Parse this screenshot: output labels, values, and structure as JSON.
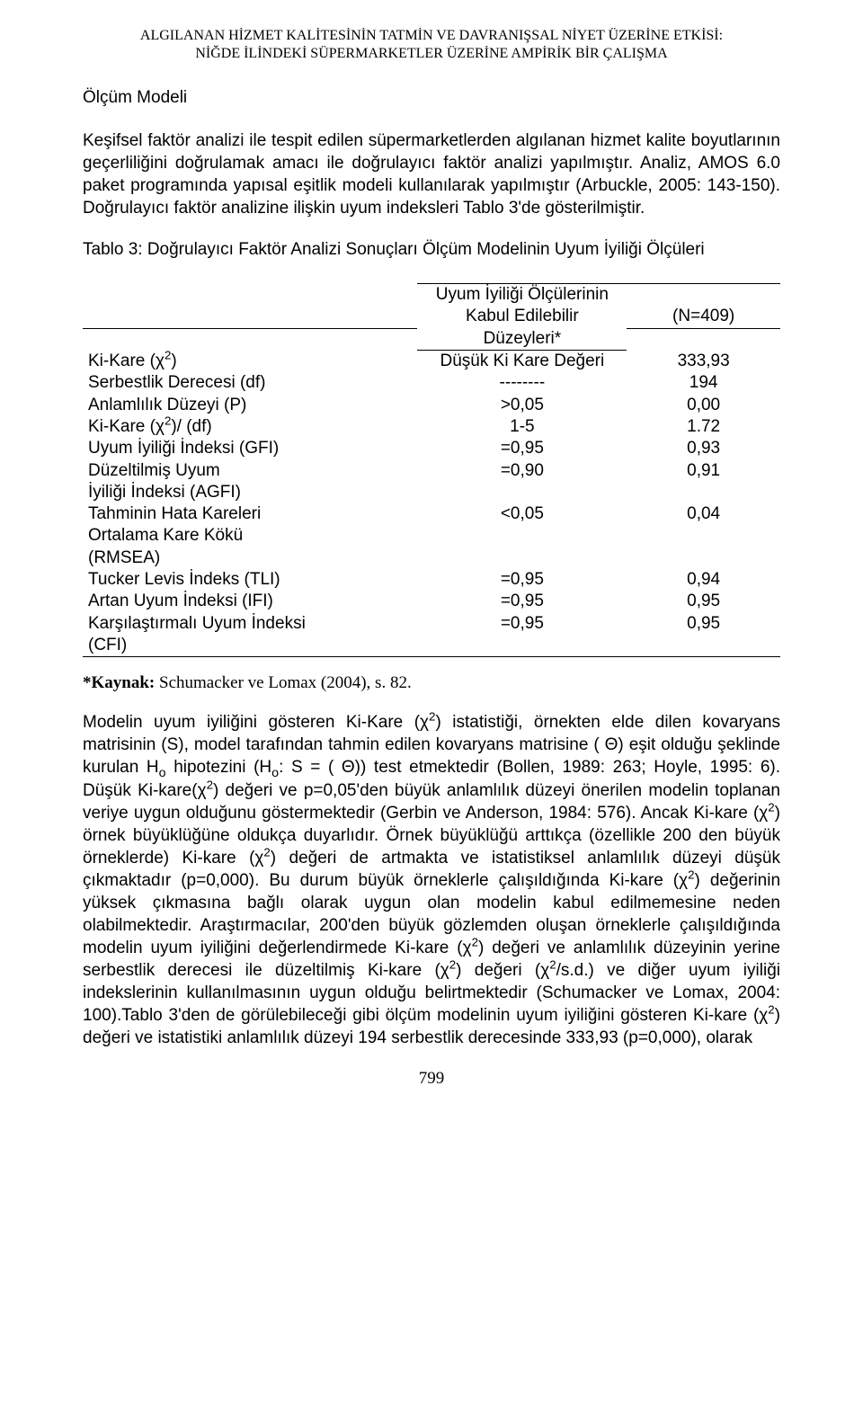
{
  "running_head": {
    "line1": "ALGILANAN HİZMET KALİTESİNİN TATMİN VE DAVRANIŞSAL NİYET ÜZERİNE ETKİSİ:",
    "line2": "NİĞDE İLİNDEKİ SÜPERMARKETLER ÜZERİNE AMPİRİK BİR ÇALIŞMA"
  },
  "section_title": "Ölçüm Modeli",
  "para1": "Keşifsel faktör analizi ile tespit edilen süpermarketlerden algılanan hizmet kalite boyutlarının geçerliliğini doğrulamak amacı ile doğrulayıcı faktör analizi yapılmıştır. Analiz, AMOS 6.0 paket programında yapısal eşitlik modeli kullanılarak yapılmıştır (Arbuckle, 2005: 143-150). Doğrulayıcı faktör analizine ilişkin uyum indeksleri Tablo 3'de gösterilmiştir.",
  "table_caption": "Tablo 3: Doğrulayıcı Faktör Analizi Sonuçları Ölçüm Modelinin Uyum İyiliği Ölçüleri",
  "table": {
    "header": {
      "crit_line1": "Uyum İyiliği Ölçülerinin",
      "crit_line2": "Kabul Edilebilir",
      "crit_line3": "Düzeyleri*",
      "n_label": "(N=409)"
    },
    "rows": [
      {
        "label_html": "Ki-Kare (χ<sup>2</sup>)",
        "crit": "Düşük Ki Kare Değeri",
        "val": "333,93"
      },
      {
        "label_html": "Serbestlik Derecesi (df)",
        "crit": "--------",
        "val": "194"
      },
      {
        "label_html": "Anlamlılık Düzeyi (P)",
        "crit": ">0,05",
        "val": "0,00"
      },
      {
        "label_html": "Ki-Kare (χ<sup>2</sup>)/ (df)",
        "crit": "1-5",
        "val": "1.72"
      },
      {
        "label_html": "Uyum İyiliği İndeksi (GFI)",
        "crit": "=0,95",
        "val": "0,93"
      },
      {
        "label_html": "Düzeltilmiş Uyum<br>İyiliği İndeksi (AGFI)",
        "crit": "=0,90",
        "val": "0,91"
      },
      {
        "label_html": "Tahminin Hata Kareleri<br>Ortalama Kare Kökü<br>(RMSEA)",
        "crit": "<0,05",
        "val": "0,04"
      },
      {
        "label_html": "Tucker Levis İndeks (TLI)",
        "crit": "=0,95",
        "val": "0,94"
      },
      {
        "label_html": "Artan Uyum İndeksi (IFI)",
        "crit": "=0,95",
        "val": "0,95"
      },
      {
        "label_html": "Karşılaştırmalı Uyum İndeksi<br>(CFI)",
        "crit": "=0,95",
        "val": "0,95"
      }
    ]
  },
  "source_note": {
    "bold": "*Kaynak:",
    "rest": " Schumacker ve Lomax (2004), s. 82."
  },
  "para2_html": "Modelin uyum iyiliğini gösteren Ki-Kare (χ<sup>2</sup>) istatistiği, örnekten elde dilen kovaryans matrisinin (S), model tarafından tahmin edilen kovaryans matrisine ( Θ) eşit olduğu şeklinde kurulan H<sub>o</sub> hipotezini (H<sub>o</sub>: S = ( Θ)) test etmektedir (Bollen, 1989: 263; Hoyle, 1995: 6). Düşük Ki-kare(χ<sup>2</sup>) değeri ve p=0,05'den büyük anlamlılık düzeyi önerilen modelin toplanan veriye uygun olduğunu göstermektedir (Gerbin ve Anderson, 1984: 576). Ancak Ki-kare (χ<sup>2</sup>) örnek büyüklüğüne oldukça duyarlıdır. Örnek büyüklüğü arttıkça (özellikle 200 den büyük örneklerde) Ki-kare (χ<sup>2</sup>) değeri de artmakta ve istatistiksel anlamlılık düzeyi düşük çıkmaktadır (p=0,000). Bu durum büyük örneklerle çalışıldığında Ki-kare (χ<sup>2</sup>) değerinin yüksek çıkmasına bağlı olarak uygun olan modelin kabul edilmemesine neden olabilmektedir. Araştırmacılar, 200'den büyük gözlemden oluşan örneklerle çalışıldığında modelin uyum iyiliğini değerlendirmede Ki-kare (χ<sup>2</sup>) değeri ve anlamlılık düzeyinin yerine serbestlik derecesi ile düzeltilmiş Ki-kare (χ<sup>2</sup>) değeri (χ<sup>2</sup>/s.d.) ve diğer uyum iyiliği indekslerinin kullanılmasının uygun olduğu belirtmektedir (Schumacker ve Lomax, 2004: 100).Tablo 3'den de görülebileceği gibi ölçüm modelinin uyum iyiliğini gösteren Ki-kare (χ<sup>2</sup>) değeri ve istatistiki anlamlılık düzeyi 194 serbestlik derecesinde 333,93 (p=0,000), olarak",
  "page_number": "799"
}
